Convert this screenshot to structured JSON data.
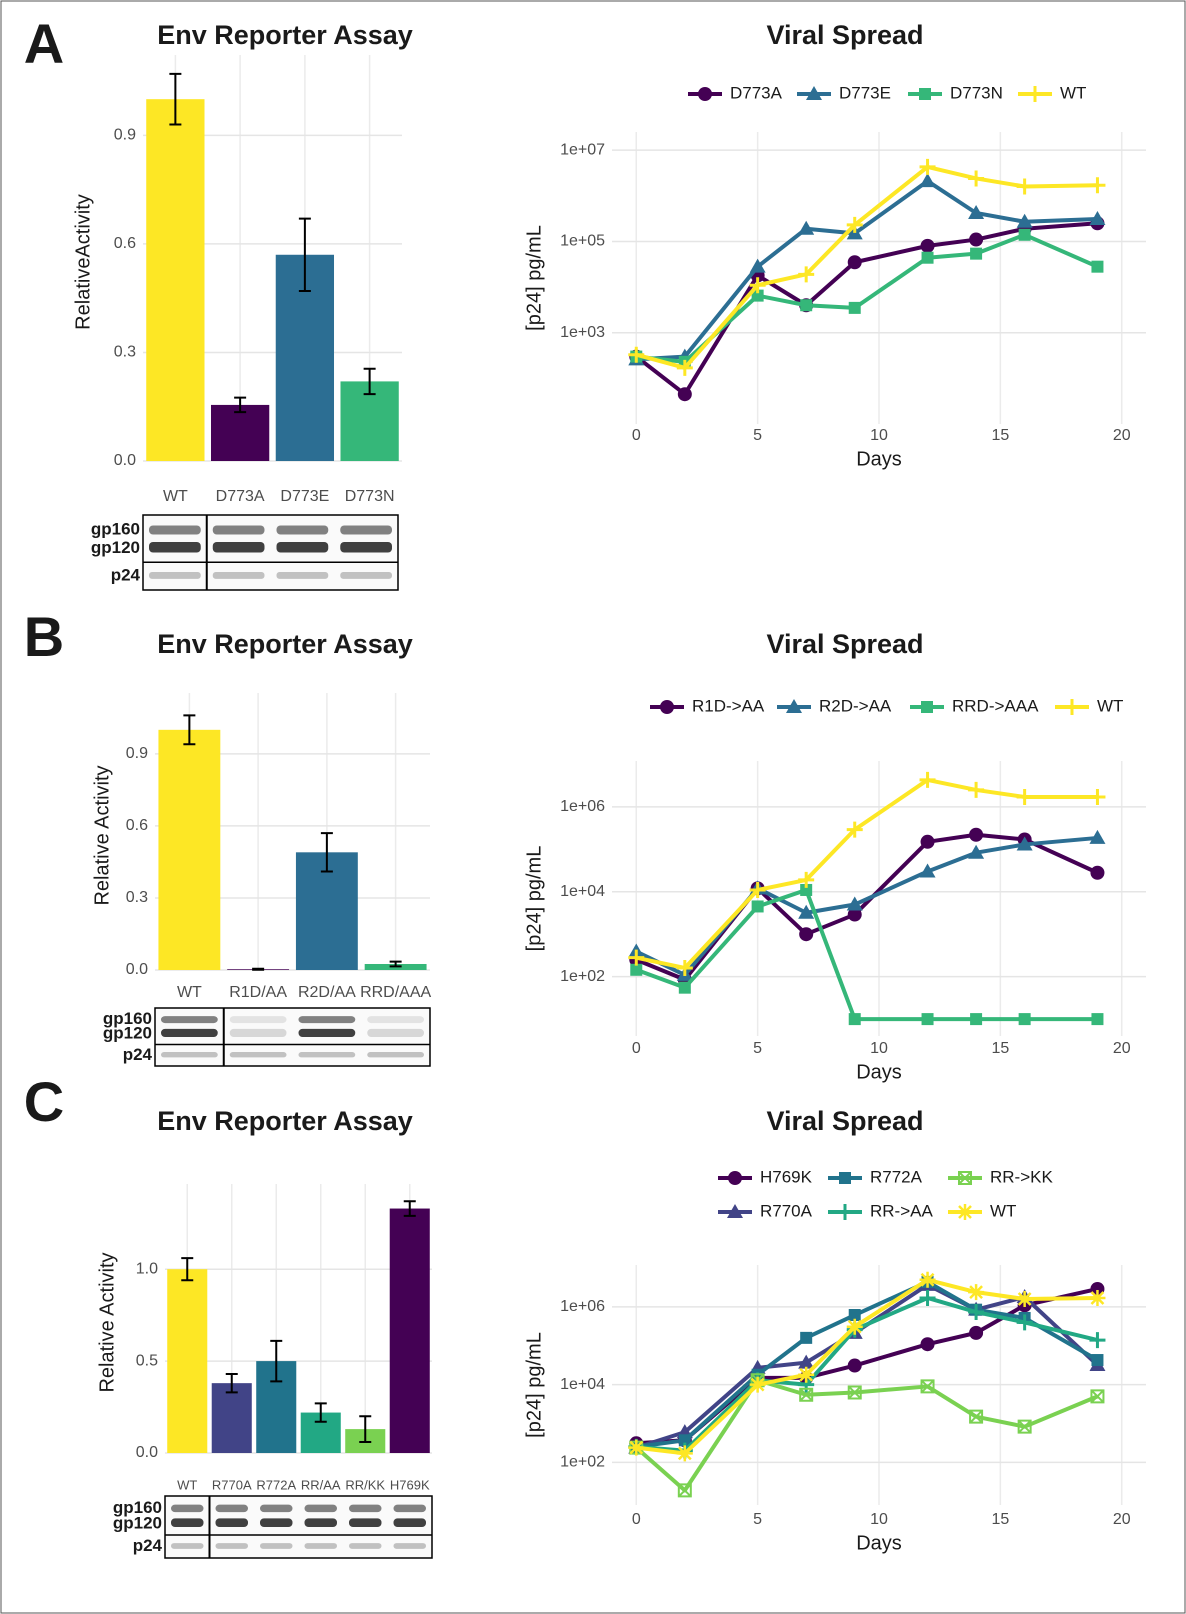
{
  "chart_data": [
    {
      "type": "bar",
      "panel": "A",
      "title": "Env Reporter Assay",
      "ylabel": "RelativeActivity",
      "categories": [
        "WT",
        "D773A",
        "D773E",
        "D773N"
      ],
      "values": [
        1.0,
        0.155,
        0.57,
        0.22
      ],
      "errors": [
        0.07,
        0.02,
        0.1,
        0.035
      ],
      "colors": [
        "#fde725",
        "#440154",
        "#2c6e93",
        "#35b779"
      ],
      "ylim": [
        0,
        1.1
      ],
      "yticks": [
        {
          "value": 0,
          "label": "0.0"
        },
        0.3,
        0.6,
        0.9
      ],
      "grid": true,
      "blot_labels": [
        "gp160",
        "gp120",
        "p24"
      ]
    },
    {
      "type": "line",
      "title": "Viral Spread",
      "xlabel": "Days",
      "ylabel": "[p24] pg/mL",
      "ylog": true,
      "grid": true,
      "x": [
        0,
        2,
        5,
        7,
        9,
        12,
        14,
        16,
        19
      ],
      "series": [
        {
          "name": "D773A",
          "color": "#440154",
          "values": [
            300,
            45,
            18000,
            4000,
            35000,
            80000,
            110000,
            190000,
            250000
          ]
        },
        {
          "name": "D773E",
          "color": "#2c6e93",
          "values": [
            260,
            300,
            28000,
            190000,
            150000,
            2100000,
            420000,
            270000,
            310000
          ]
        },
        {
          "name": "D773N",
          "color": "#35b779",
          "values": [
            300,
            230,
            6500,
            4000,
            3500,
            44000,
            54000,
            140000,
            28000
          ]
        },
        {
          "name": "WT",
          "color": "#fde725",
          "values": [
            330,
            170,
            11000,
            19000,
            230000,
            4300000,
            2400000,
            1600000,
            1700000
          ]
        }
      ],
      "xlim": [
        -1,
        21
      ],
      "xticks": [
        0,
        5,
        10,
        15,
        20
      ],
      "ylim": [
        10,
        25000000
      ],
      "yticks": [
        {
          "value": 1000,
          "label": "1e+03"
        },
        {
          "value": 100000,
          "label": "1e+05"
        },
        {
          "value": 10000000,
          "label": "1e+07"
        }
      ]
    },
    {
      "type": "bar",
      "panel": "B",
      "title": "Env Reporter Assay",
      "ylabel": "Relative Activity",
      "categories": [
        "WT",
        "R1D/AA",
        "R2D/AA",
        "RRD/AAA"
      ],
      "values": [
        1.0,
        0.003,
        0.49,
        0.025
      ],
      "errors": [
        0.06,
        0.002,
        0.08,
        0.01
      ],
      "colors": [
        "#fde725",
        "#440154",
        "#2c6e93",
        "#35b779"
      ],
      "ylim": [
        0,
        1.12
      ],
      "yticks": [
        {
          "value": 0,
          "label": "0.0"
        },
        0.3,
        0.6,
        0.9
      ],
      "grid": true,
      "blot_labels": [
        "gp160",
        "gp120",
        "p24"
      ]
    },
    {
      "type": "line",
      "title": "Viral Spread",
      "xlabel": "Days",
      "ylabel": "[p24] pg/mL",
      "ylog": true,
      "grid": true,
      "x": [
        0,
        2,
        5,
        7,
        9,
        12,
        14,
        16,
        19
      ],
      "series": [
        {
          "name": "R1D->AA",
          "color": "#440154",
          "values": [
            250,
            85,
            12000,
            1000,
            2900,
            150000,
            220000,
            170000,
            28000
          ]
        },
        {
          "name": "R2D->AA",
          "color": "#2c6e93",
          "values": [
            390,
            110,
            12000,
            3200,
            5000,
            30000,
            83000,
            130000,
            185000
          ]
        },
        {
          "name": "RRD->AAA",
          "color": "#35b779",
          "values": [
            145,
            55,
            4500,
            11000,
            10,
            10,
            10,
            10,
            10
          ]
        },
        {
          "name": "WT",
          "color": "#fde725",
          "values": [
            280,
            160,
            11000,
            19000,
            290000,
            4300000,
            2500000,
            1700000,
            1700000
          ]
        }
      ],
      "xlim": [
        -1,
        21
      ],
      "xticks": [
        0,
        5,
        10,
        15,
        20
      ],
      "ylim": [
        4,
        12000000
      ],
      "yticks": [
        {
          "value": 100,
          "label": "1e+02"
        },
        {
          "value": 10000,
          "label": "1e+04"
        },
        {
          "value": 1000000,
          "label": "1e+06"
        }
      ]
    },
    {
      "type": "bar",
      "panel": "C",
      "title": "Env Reporter Assay",
      "ylabel": "Relative Activity",
      "categories": [
        "WT",
        "R770A",
        "R772A",
        "RR/AA",
        "RR/KK",
        "H769K"
      ],
      "values": [
        1.0,
        0.38,
        0.5,
        0.22,
        0.13,
        1.33
      ],
      "errors": [
        0.06,
        0.05,
        0.11,
        0.05,
        0.07,
        0.04
      ],
      "colors": [
        "#fde725",
        "#414487",
        "#21738c",
        "#22a884",
        "#7ad151",
        "#440154"
      ],
      "ylim": [
        0,
        1.42
      ],
      "yticks": [
        {
          "value": 0,
          "label": "0.0"
        },
        0.5,
        {
          "value": 1,
          "label": "1.0"
        }
      ],
      "grid": true,
      "blot_labels": [
        "gp160",
        "gp120",
        "p24"
      ]
    },
    {
      "type": "line",
      "title": "Viral Spread",
      "xlabel": "Days",
      "ylabel": "[p24] pg/mL",
      "ylog": true,
      "grid": true,
      "x": [
        0,
        2,
        5,
        7,
        9,
        12,
        14,
        16,
        19
      ],
      "series": [
        {
          "name": "H769K",
          "color": "#440154",
          "values": [
            310,
            370,
            15000,
            15000,
            31000,
            110000,
            215000,
            1100000,
            2900000
          ]
        },
        {
          "name": "R770A",
          "color": "#414487",
          "values": [
            240,
            600,
            27000,
            37000,
            215000,
            3700000,
            850000,
            1800000,
            32000
          ]
        },
        {
          "name": "R772A",
          "color": "#21738c",
          "values": [
            250,
            370,
            18000,
            160000,
            620000,
            4400000,
            850000,
            520000,
            43000
          ]
        },
        {
          "name": "RR->AA",
          "color": "#22a884",
          "values": [
            250,
            200,
            13000,
            10000,
            260000,
            1700000,
            740000,
            400000,
            140000
          ]
        },
        {
          "name": "RR->KK",
          "color": "#7ad151",
          "values": [
            240,
            19,
            13000,
            5500,
            6300,
            9000,
            1500,
            830,
            5000
          ]
        },
        {
          "name": "WT",
          "color": "#fde725",
          "values": [
            240,
            170,
            10000,
            18000,
            310000,
            5000000,
            2400000,
            1600000,
            1700000
          ]
        }
      ],
      "xlim": [
        -1,
        21
      ],
      "xticks": [
        0,
        5,
        10,
        15,
        20
      ],
      "ylim": [
        8,
        12000000
      ],
      "yticks": [
        {
          "value": 100,
          "label": "1e+02"
        },
        {
          "value": 10000,
          "label": "1e+04"
        },
        {
          "value": 1000000,
          "label": "1e+06"
        }
      ]
    }
  ]
}
